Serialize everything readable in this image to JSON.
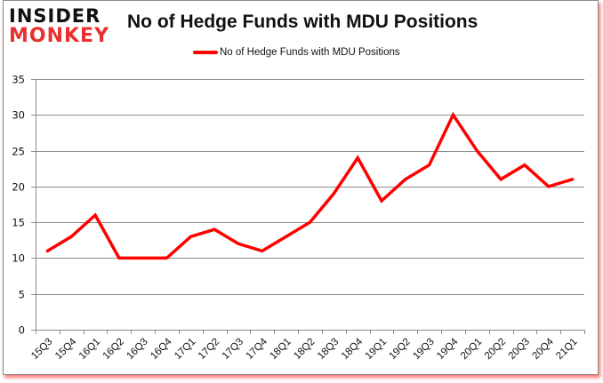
{
  "brand": {
    "line1": "INSIDER",
    "line2": "MONKEY"
  },
  "chart": {
    "title": "No of Hedge Funds with MDU Positions",
    "legend_label": "No of Hedge Funds with MDU Positions",
    "line_color": "#ff0000"
  },
  "chart_data": {
    "type": "line",
    "title": "No of Hedge Funds with MDU Positions",
    "xlabel": "",
    "ylabel": "",
    "ylim": [
      0,
      35
    ],
    "yticks": [
      0,
      5,
      10,
      15,
      20,
      25,
      30,
      35
    ],
    "grid": true,
    "legend_position": "top",
    "categories": [
      "15Q3",
      "15Q4",
      "16Q1",
      "16Q2",
      "16Q3",
      "16Q4",
      "17Q1",
      "17Q2",
      "17Q3",
      "17Q4",
      "18Q1",
      "18Q2",
      "18Q3",
      "18Q4",
      "19Q1",
      "19Q2",
      "19Q3",
      "19Q4",
      "20Q1",
      "20Q2",
      "20Q3",
      "20Q4",
      "21Q1"
    ],
    "series": [
      {
        "name": "No of Hedge Funds with MDU Positions",
        "color": "#ff0000",
        "values": [
          11,
          13,
          16,
          10,
          10,
          10,
          13,
          14,
          12,
          11,
          13,
          15,
          19,
          24,
          18,
          21,
          23,
          30,
          25,
          21,
          23,
          20,
          21
        ]
      }
    ]
  }
}
